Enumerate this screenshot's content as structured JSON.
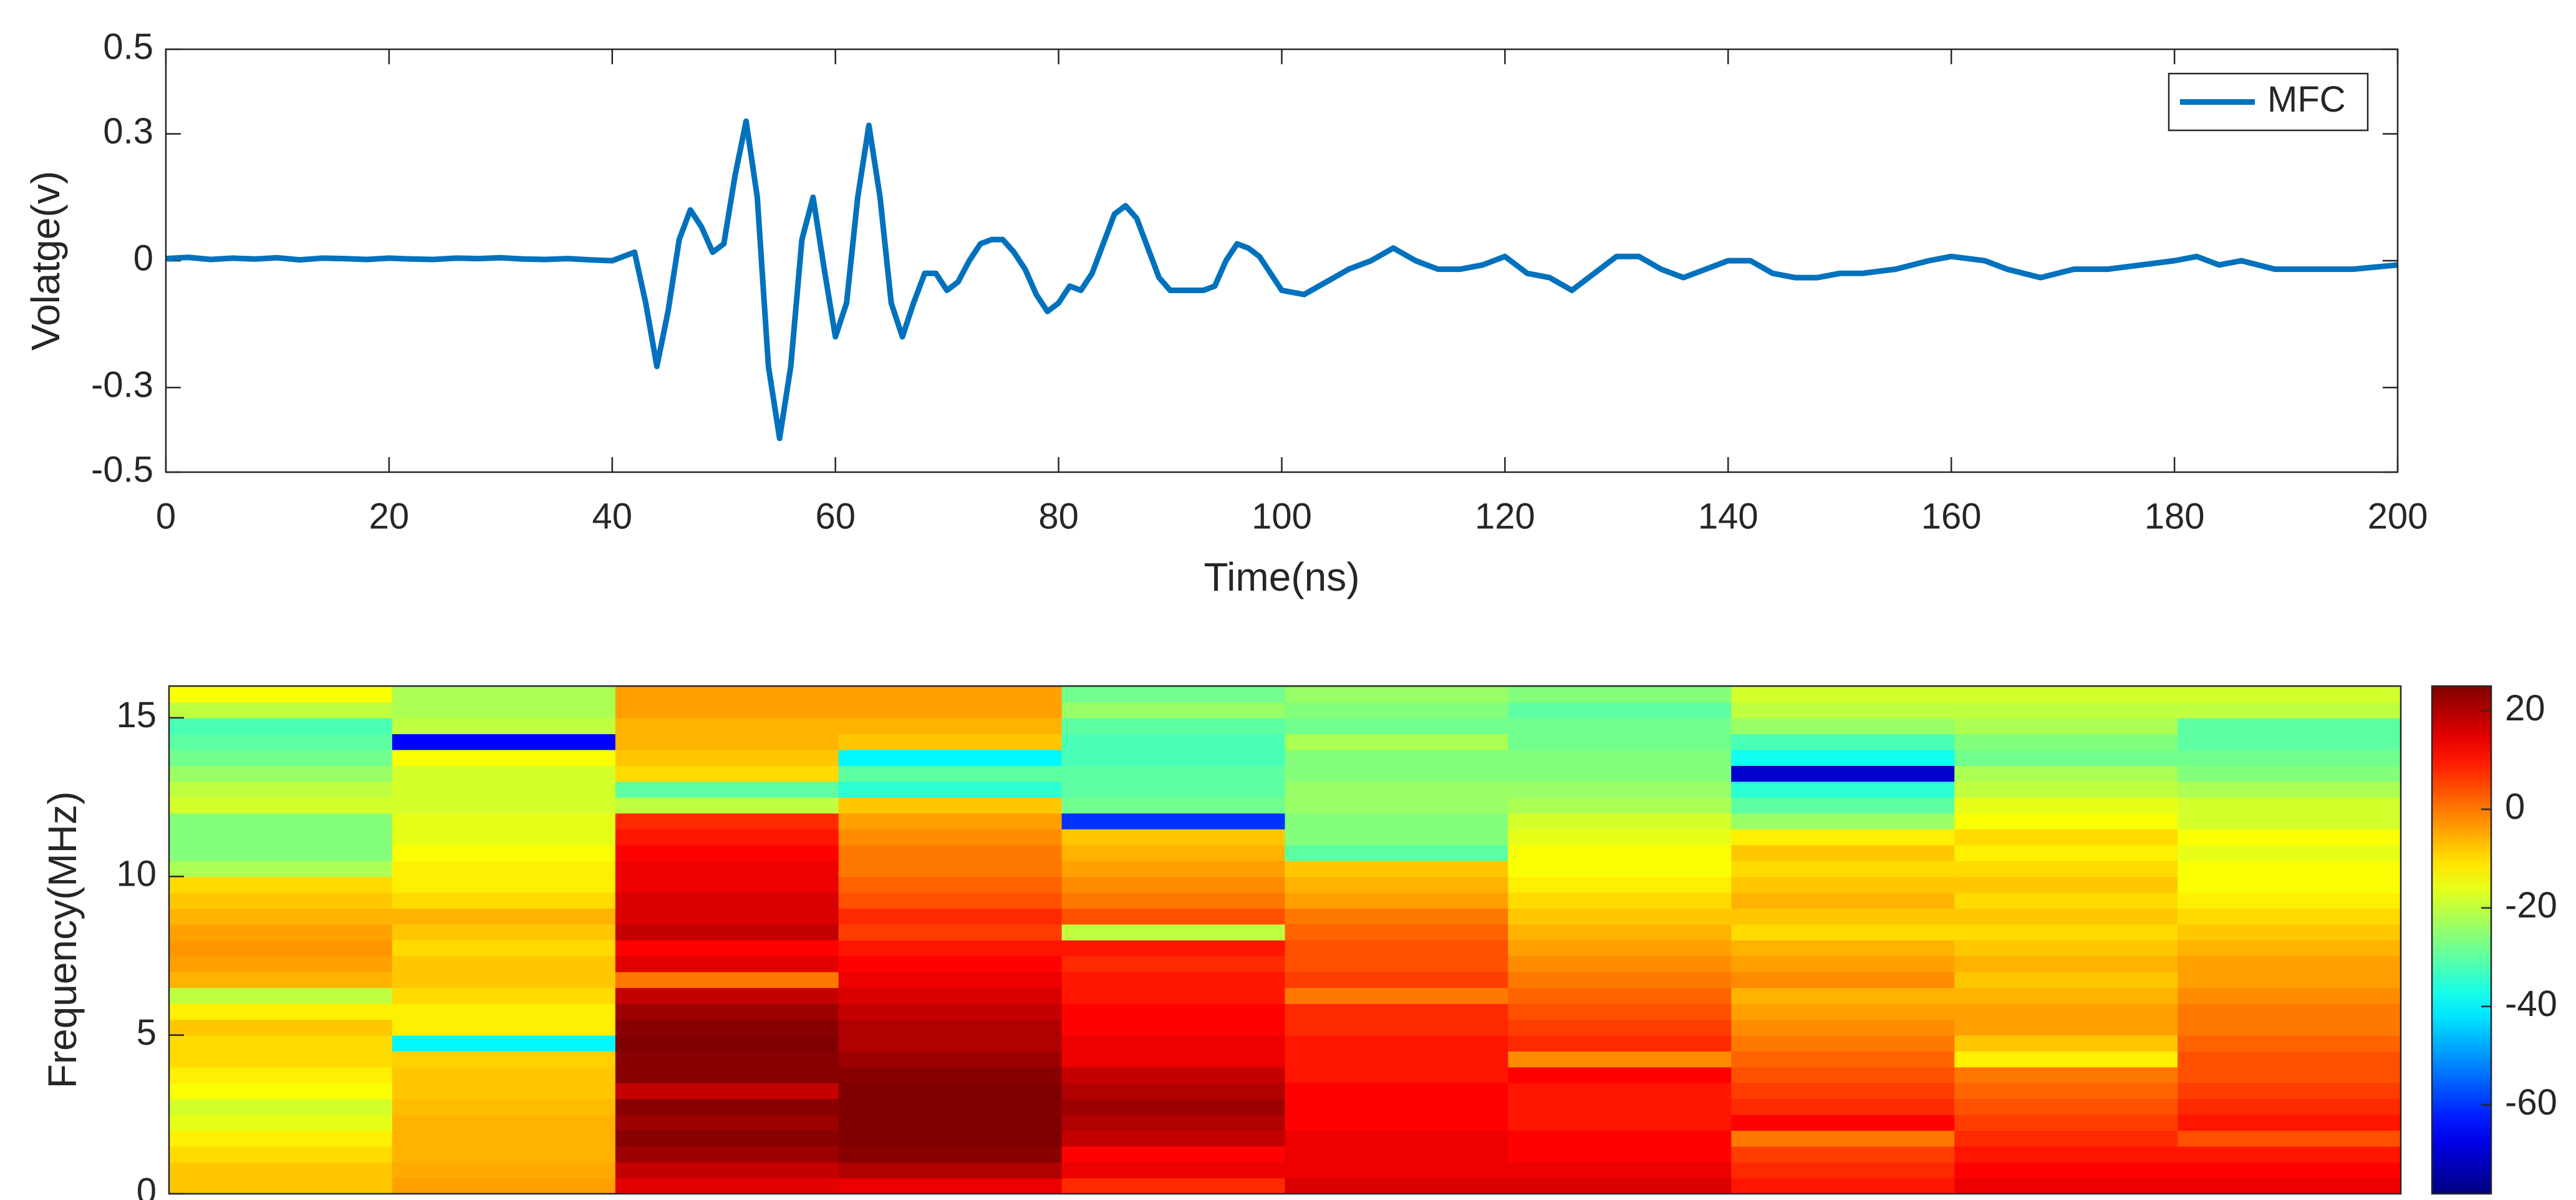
{
  "chart_data": [
    {
      "type": "line",
      "xlabel": "Time(ns)",
      "ylabel": "Volatge(v)",
      "xlim": [
        0,
        200
      ],
      "ylim": [
        -0.5,
        0.5
      ],
      "xticks": [
        0,
        20,
        40,
        60,
        80,
        100,
        120,
        140,
        160,
        180,
        200
      ],
      "yticks": [
        -0.5,
        -0.3,
        0,
        0.3,
        0.5
      ],
      "legend": "northeast",
      "x": [
        0,
        2,
        4,
        6,
        8,
        10,
        12,
        14,
        16,
        18,
        20,
        22,
        24,
        26,
        28,
        30,
        32,
        34,
        36,
        38,
        40,
        41,
        42,
        43,
        44,
        45,
        46,
        47,
        48,
        49,
        50,
        51,
        52,
        53,
        54,
        55,
        56,
        57,
        58,
        59,
        60,
        61,
        62,
        63,
        64,
        65,
        66,
        67,
        68,
        69,
        70,
        71,
        72,
        73,
        74,
        75,
        76,
        77,
        78,
        79,
        80,
        81,
        82,
        83,
        84,
        85,
        86,
        87,
        88,
        89,
        90,
        91,
        92,
        93,
        94,
        95,
        96,
        97,
        98,
        99,
        100,
        102,
        104,
        106,
        108,
        110,
        112,
        114,
        116,
        118,
        120,
        122,
        124,
        126,
        128,
        130,
        132,
        134,
        136,
        138,
        140,
        142,
        144,
        146,
        148,
        150,
        152,
        155,
        158,
        160,
        163,
        165,
        168,
        171,
        174,
        177,
        180,
        182,
        184,
        186,
        189,
        192,
        196,
        200
      ],
      "series": [
        {
          "name": "MFC",
          "color": "#0072bd",
          "values": [
            0.005,
            0.008,
            0.003,
            0.006,
            0.004,
            0.007,
            0.002,
            0.006,
            0.005,
            0.003,
            0.006,
            0.004,
            0.003,
            0.006,
            0.005,
            0.007,
            0.004,
            0.003,
            0.005,
            0.002,
            0,
            0.01,
            0.02,
            -0.1,
            -0.25,
            -0.12,
            0.05,
            0.12,
            0.08,
            0.02,
            0.04,
            0.2,
            0.33,
            0.15,
            -0.25,
            -0.42,
            -0.25,
            0.05,
            0.15,
            -0.02,
            -0.18,
            -0.1,
            0.15,
            0.32,
            0.15,
            -0.1,
            -0.18,
            -0.1,
            -0.03,
            -0.03,
            -0.07,
            -0.05,
            0,
            0.04,
            0.05,
            0.05,
            0.02,
            -0.02,
            -0.08,
            -0.12,
            -0.1,
            -0.06,
            -0.07,
            -0.03,
            0.04,
            0.11,
            0.13,
            0.1,
            0.03,
            -0.04,
            -0.07,
            -0.07,
            -0.07,
            -0.07,
            -0.06,
            0,
            0.04,
            0.03,
            0.01,
            -0.03,
            -0.07,
            -0.08,
            -0.05,
            -0.02,
            0,
            0.03,
            0,
            -0.02,
            -0.02,
            -0.01,
            0.01,
            -0.03,
            -0.04,
            -0.07,
            -0.03,
            0.01,
            0.01,
            -0.02,
            -0.04,
            -0.02,
            0,
            0,
            -0.03,
            -0.04,
            -0.04,
            -0.03,
            -0.03,
            -0.02,
            0,
            0.01,
            0,
            -0.02,
            -0.04,
            -0.02,
            -0.02,
            -0.01,
            0,
            0.01,
            -0.01,
            0,
            -0.02,
            -0.02,
            -0.02,
            -0.01
          ]
        }
      ]
    },
    {
      "type": "heatmap",
      "ylabel": "Frequency(MHz)",
      "ylim": [
        0,
        16
      ],
      "yticks": [
        0,
        5,
        10,
        15
      ],
      "ybins": [
        0,
        0.5,
        1,
        1.5,
        2,
        2.5,
        3,
        3.5,
        4,
        4.5,
        5,
        5.5,
        6,
        6.5,
        7,
        7.5,
        8,
        8.5,
        9,
        9.5,
        10,
        10.5,
        11,
        11.5,
        12,
        12.5,
        13,
        13.5,
        14,
        14.5,
        15,
        15.5,
        16
      ],
      "colormap": "jet",
      "clim": [
        -78,
        25
      ],
      "cticks": [
        -60,
        -40,
        -20,
        0,
        20
      ],
      "z": [
        [
          -8,
          -8,
          -10,
          -12,
          -16,
          -18,
          -14,
          -12,
          -10,
          -10,
          -8,
          -12,
          -20,
          -6,
          -4,
          -3,
          -4,
          -6,
          -8,
          -10,
          -22,
          -26,
          -26,
          -26,
          -18,
          -20,
          -24,
          -28,
          -30,
          -32,
          -20,
          -14
        ],
        [
          -4,
          -5,
          -6,
          -6,
          -6,
          -7,
          -8,
          -8,
          -9,
          -40,
          -12,
          -12,
          -10,
          -8,
          -8,
          -10,
          -8,
          -6,
          -10,
          -12,
          -12,
          -14,
          -16,
          -16,
          -18,
          -18,
          -18,
          -14,
          -65,
          -20,
          -22,
          -22
        ],
        [
          15,
          18,
          22,
          24,
          22,
          24,
          18,
          24,
          24,
          26,
          24,
          22,
          18,
          0,
          15,
          12,
          18,
          16,
          16,
          14,
          14,
          12,
          10,
          8,
          -20,
          -30,
          -10,
          -8,
          -6,
          -6,
          -4,
          -4
        ],
        [
          14,
          20,
          24,
          25,
          26,
          26,
          25,
          24,
          22,
          20,
          20,
          18,
          16,
          14,
          12,
          10,
          6,
          8,
          4,
          2,
          0,
          0,
          -2,
          -4,
          -8,
          -35,
          -30,
          -40,
          -8,
          -6,
          -4,
          -4
        ],
        [
          8,
          14,
          12,
          18,
          20,
          22,
          20,
          18,
          14,
          14,
          12,
          12,
          10,
          10,
          8,
          10,
          -20,
          4,
          0,
          -2,
          -4,
          -6,
          -8,
          -60,
          -28,
          -30,
          -30,
          -32,
          -32,
          -30,
          -24,
          -28
        ],
        [
          16,
          14,
          14,
          14,
          12,
          12,
          12,
          10,
          10,
          10,
          8,
          8,
          0,
          6,
          4,
          4,
          2,
          0,
          -4,
          -6,
          -8,
          -30,
          -26,
          -26,
          -24,
          -24,
          -26,
          -26,
          -22,
          -28,
          -26,
          -24
        ],
        [
          16,
          14,
          12,
          12,
          10,
          10,
          10,
          12,
          -2,
          8,
          6,
          4,
          2,
          0,
          -2,
          -4,
          -6,
          -8,
          -10,
          -12,
          -14,
          -14,
          -16,
          -18,
          -22,
          -24,
          -26,
          -26,
          -28,
          -28,
          -30,
          -26
        ],
        [
          10,
          8,
          6,
          0,
          12,
          8,
          6,
          4,
          2,
          0,
          -2,
          -4,
          -6,
          -2,
          -4,
          -6,
          -10,
          -8,
          -6,
          -8,
          -10,
          -8,
          -12,
          -24,
          -30,
          -35,
          -70,
          -38,
          -32,
          -24,
          -20,
          -18
        ],
        [
          14,
          12,
          10,
          8,
          6,
          4,
          2,
          0,
          -12,
          -8,
          -4,
          -4,
          -6,
          -8,
          -6,
          -8,
          -10,
          -8,
          -10,
          -8,
          -10,
          -12,
          -10,
          -14,
          -16,
          -20,
          -22,
          -28,
          -26,
          -22,
          -20,
          -18
        ],
        [
          14,
          12,
          10,
          4,
          10,
          8,
          6,
          4,
          4,
          2,
          0,
          0,
          -2,
          -4,
          -4,
          -6,
          -8,
          -10,
          -12,
          -14,
          -14,
          -16,
          -14,
          -18,
          -18,
          -22,
          -26,
          -28,
          -30,
          -30,
          -20,
          -18
        ]
      ]
    }
  ]
}
